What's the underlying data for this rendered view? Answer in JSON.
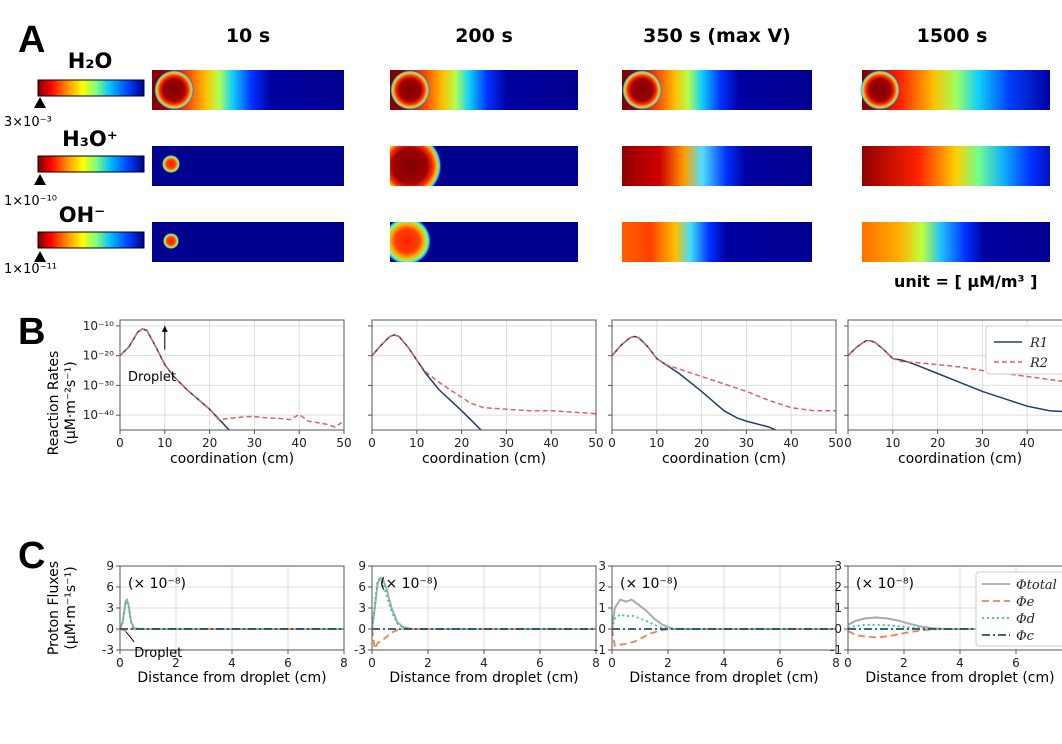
{
  "panel_a": {
    "letter": "A",
    "times": [
      "10 s",
      "200 s",
      "350 s (max V)",
      "1500 s"
    ],
    "species": [
      {
        "name": "H₂O",
        "min_label": "3×10⁻³"
      },
      {
        "name": "H₃O⁺",
        "min_label": "1×10⁻¹⁰"
      },
      {
        "name": "OH⁻",
        "min_label": "1×10⁻¹¹"
      }
    ],
    "unit_label": "unit = [ μM/m³ ]"
  },
  "chart_data": [
    {
      "panel": "B",
      "type": "line",
      "letter": "B",
      "subplots": [
        "10 s",
        "200 s",
        "350 s (max V)",
        "1500 s"
      ],
      "xlabel": "coordination (cm)",
      "ylabel": "Reaction Rates",
      "ylabel_units": "(μM·m⁻²s⁻¹)",
      "xlim": [
        0,
        50
      ],
      "ylim_exponent": [
        -45,
        -8
      ],
      "yscale": "log",
      "xticks": [
        "0",
        "10",
        "20",
        "30",
        "40",
        "50"
      ],
      "yticks": [
        "10⁻¹⁰",
        "10⁻²⁰",
        "10⁻³⁰",
        "10⁻⁴⁰"
      ],
      "annotation": "Droplet",
      "legend": {
        "placement": "top-right",
        "entries": [
          "R1",
          "R2"
        ]
      },
      "colors": {
        "R1": "#1f3f6b",
        "R2": "#e06060"
      },
      "series": [
        [
          {
            "name": "R1",
            "x": [
              0,
              2,
              4,
              5,
              6,
              8,
              10,
              12,
              15,
              20,
              25
            ],
            "y_log10": [
              -20,
              -17,
              -12,
              -11,
              -11.5,
              -17,
              -23,
              -27,
              -31.5,
              -38,
              -46
            ]
          },
          {
            "name": "R2",
            "x": [
              0,
              2,
              4,
              5,
              6,
              8,
              10,
              12,
              15,
              20,
              22,
              25,
              28,
              30,
              33,
              35,
              38,
              40,
              42,
              44,
              46,
              48,
              50
            ],
            "y_log10": [
              -20,
              -17,
              -12,
              -11,
              -11.5,
              -17,
              -23,
              -27,
              -31.5,
              -38,
              -41.5,
              -41,
              -40.5,
              -40.5,
              -41,
              -41,
              -41.5,
              -39.8,
              -42,
              -42.5,
              -43,
              -44,
              -42
            ]
          }
        ],
        [
          {
            "name": "R1",
            "x": [
              0,
              2,
              4,
              5,
              6,
              8,
              10,
              12,
              15,
              20,
              25
            ],
            "y_log10": [
              -20,
              -16.5,
              -13.5,
              -13,
              -13.5,
              -17,
              -21.5,
              -26,
              -31.5,
              -38.5,
              -46
            ]
          },
          {
            "name": "R2",
            "x": [
              0,
              2,
              4,
              5,
              6,
              8,
              10,
              12,
              15,
              18,
              20,
              22,
              25,
              30,
              35,
              40,
              45,
              50
            ],
            "y_log10": [
              -20,
              -16.5,
              -13.5,
              -13,
              -13.5,
              -17,
              -21.5,
              -25.5,
              -29,
              -32,
              -34,
              -36,
              -37.5,
              -38,
              -38.5,
              -38.5,
              -39,
              -39.5
            ]
          }
        ],
        [
          {
            "name": "R1",
            "x": [
              0,
              2,
              4,
              5,
              6,
              8,
              10,
              12,
              15,
              20,
              25,
              28,
              30,
              35,
              38
            ],
            "y_log10": [
              -20,
              -16.5,
              -14,
              -13.5,
              -14,
              -17,
              -21,
              -23,
              -26,
              -32,
              -38.5,
              -41,
              -42,
              -44,
              -46
            ]
          },
          {
            "name": "R2",
            "x": [
              0,
              2,
              4,
              5,
              6,
              8,
              10,
              12,
              15,
              20,
              25,
              30,
              35,
              40,
              45,
              50
            ],
            "y_log10": [
              -20,
              -16.5,
              -14,
              -13.5,
              -14,
              -17,
              -21,
              -23,
              -24.5,
              -27,
              -29.5,
              -32,
              -35,
              -37.5,
              -38.5,
              -38.5
            ]
          }
        ],
        [
          {
            "name": "R1",
            "x": [
              0,
              2,
              4,
              5,
              6,
              8,
              10,
              12,
              15,
              20,
              25,
              30,
              35,
              40,
              45,
              50
            ],
            "y_log10": [
              -20,
              -17,
              -15,
              -15,
              -15.5,
              -18,
              -21,
              -21.5,
              -23,
              -26,
              -29,
              -32,
              -34.5,
              -37,
              -38.5,
              -39
            ]
          },
          {
            "name": "R2",
            "x": [
              0,
              2,
              4,
              5,
              6,
              8,
              10,
              12,
              15,
              20,
              25,
              30,
              35,
              40,
              45,
              50
            ],
            "y_log10": [
              -20,
              -17,
              -15,
              -15,
              -15.5,
              -18,
              -21,
              -22,
              -22.3,
              -23,
              -23.8,
              -25,
              -26,
              -27,
              -28,
              -29
            ]
          }
        ]
      ]
    },
    {
      "panel": "C",
      "type": "line",
      "letter": "C",
      "subplots": [
        "10 s",
        "200 s",
        "350 s (max V)",
        "1500 s"
      ],
      "xlabel": "Distance from droplet (cm)",
      "ylabel": "Proton Fluxes",
      "ylabel_units": "(μM·m⁻¹s⁻¹)",
      "xlim": [
        0,
        8
      ],
      "scale_label": "(× 10⁻⁸)",
      "xticks": [
        "0",
        "2",
        "4",
        "6",
        "8"
      ],
      "ylims": [
        [
          -3,
          9
        ],
        [
          -3,
          9
        ],
        [
          -1,
          3
        ],
        [
          -1,
          3
        ]
      ],
      "yticks": [
        [
          "-3",
          "0",
          "3",
          "6",
          "9"
        ],
        [
          "-3",
          "0",
          "3",
          "6",
          "9"
        ],
        [
          "-1",
          "0",
          "1",
          "2",
          "3"
        ],
        [
          "-1",
          "0",
          "1",
          "2",
          "3"
        ]
      ],
      "annotation": "Droplet",
      "legend": {
        "placement": "top-right",
        "entries": [
          "Φtotal",
          "Φe",
          "Φd",
          "Φc"
        ]
      },
      "colors": {
        "total": "#aaaaaa",
        "e": "#f08050",
        "d": "#30c0b0",
        "c": "#205070"
      },
      "series": [
        [
          {
            "name": "total",
            "x": [
              0,
              0.1,
              0.2,
              0.25,
              0.3,
              0.4,
              0.5,
              0.7,
              8
            ],
            "y": [
              0,
              1,
              4,
              4.2,
              3.5,
              1,
              0.1,
              0,
              0
            ]
          },
          {
            "name": "e",
            "x": [
              0,
              0.1,
              0.2,
              0.3,
              0.4,
              0.6,
              8
            ],
            "y": [
              0,
              -0.1,
              -0.3,
              -0.2,
              0,
              0,
              0
            ]
          },
          {
            "name": "d",
            "x": [
              0,
              0.1,
              0.2,
              0.25,
              0.3,
              0.4,
              0.5,
              0.7,
              8
            ],
            "y": [
              0,
              1,
              3.8,
              4.0,
              3.3,
              0.9,
              0.1,
              0,
              0
            ]
          },
          {
            "name": "c",
            "x": [
              0,
              8
            ],
            "y": [
              0,
              0
            ]
          }
        ],
        [
          {
            "name": "total",
            "x": [
              0,
              0.1,
              0.2,
              0.3,
              0.4,
              0.5,
              0.7,
              0.9,
              1.1,
              1.4,
              8
            ],
            "y": [
              0,
              3,
              6.5,
              7.3,
              7,
              6,
              3,
              1,
              0.3,
              0,
              0
            ]
          },
          {
            "name": "e",
            "x": [
              0,
              0.1,
              0.2,
              0.3,
              0.4,
              0.5,
              0.7,
              1,
              8
            ],
            "y": [
              0,
              -2.8,
              -2,
              -1.8,
              -1.5,
              -1.2,
              -0.5,
              0,
              0
            ]
          },
          {
            "name": "d",
            "x": [
              0,
              0.1,
              0.2,
              0.3,
              0.4,
              0.5,
              0.7,
              0.9,
              1.1,
              1.4,
              8
            ],
            "y": [
              0,
              3.5,
              7,
              7.2,
              6.5,
              5,
              2.5,
              0.8,
              0.2,
              0,
              0
            ]
          },
          {
            "name": "c",
            "x": [
              0,
              8
            ],
            "y": [
              0,
              0
            ]
          }
        ],
        [
          {
            "name": "total",
            "x": [
              0,
              0.1,
              0.3,
              0.5,
              0.7,
              0.9,
              1.2,
              1.5,
              1.8,
              2.2,
              8
            ],
            "y": [
              0,
              1,
              1.4,
              1.3,
              1.4,
              1.2,
              0.9,
              0.5,
              0.2,
              0,
              0
            ]
          },
          {
            "name": "e",
            "x": [
              0,
              0.1,
              0.3,
              0.5,
              0.8,
              1.1,
              1.4,
              1.8,
              2.2,
              8
            ],
            "y": [
              0,
              -0.8,
              -0.75,
              -0.7,
              -0.6,
              -0.4,
              -0.2,
              -0.05,
              0,
              0
            ]
          },
          {
            "name": "d",
            "x": [
              0,
              0.1,
              0.3,
              0.5,
              0.7,
              0.9,
              1.2,
              1.5,
              1.8,
              2.2,
              8
            ],
            "y": [
              0,
              0.5,
              0.7,
              0.6,
              0.65,
              0.55,
              0.4,
              0.2,
              0.05,
              0,
              0
            ]
          },
          {
            "name": "c",
            "x": [
              0,
              8
            ],
            "y": [
              0,
              0
            ]
          }
        ],
        [
          {
            "name": "total",
            "x": [
              0,
              0.3,
              0.6,
              1,
              1.4,
              1.8,
              2.2,
              2.6,
              3,
              3.5,
              8
            ],
            "y": [
              0.2,
              0.4,
              0.5,
              0.55,
              0.5,
              0.4,
              0.25,
              0.12,
              0.04,
              0,
              0
            ]
          },
          {
            "name": "e",
            "x": [
              0,
              0.3,
              0.6,
              1,
              1.4,
              1.8,
              2.2,
              2.6,
              3,
              3.5,
              8
            ],
            "y": [
              -0.1,
              -0.3,
              -0.35,
              -0.4,
              -0.35,
              -0.25,
              -0.15,
              -0.07,
              -0.02,
              0,
              0
            ]
          },
          {
            "name": "d",
            "x": [
              0,
              0.3,
              0.6,
              1,
              1.4,
              1.8,
              2.2,
              2.6,
              3,
              3.5,
              8
            ],
            "y": [
              0.05,
              0.15,
              0.2,
              0.2,
              0.18,
              0.13,
              0.08,
              0.04,
              0.01,
              0,
              0
            ]
          },
          {
            "name": "c",
            "x": [
              0,
              8
            ],
            "y": [
              0,
              0
            ]
          }
        ]
      ]
    }
  ]
}
